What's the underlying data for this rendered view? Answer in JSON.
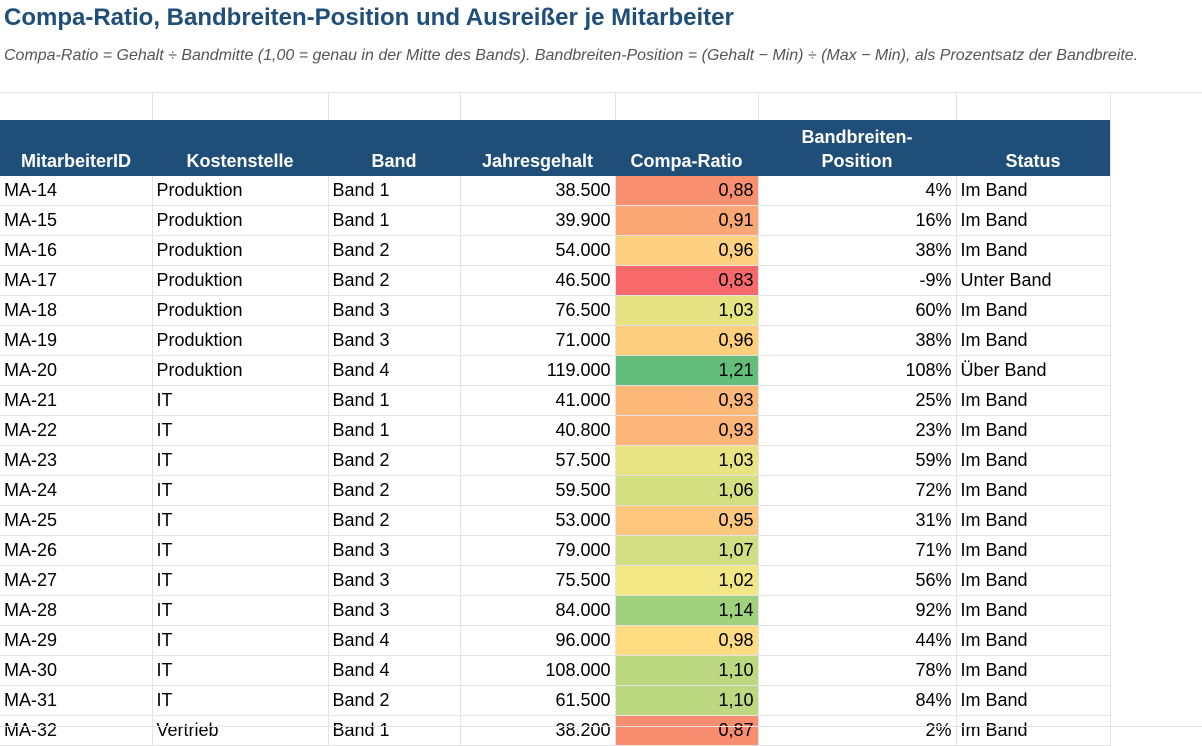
{
  "sheet": {
    "title": "Compa-Ratio, Bandbreiten-Position und Ausreißer je Mitarbeiter",
    "subtitle": "Compa-Ratio = Gehalt ÷ Bandmitte (1,00 = genau in der Mitte des Bands). Bandbreiten-Position = (Gehalt − Min) ÷ (Max − Min), als Prozentsatz der Bandbreite."
  },
  "headers": [
    "MitarbeiterID",
    "Kostenstelle",
    "Band",
    "Jahresgehalt",
    "Compa-Ratio",
    "Bandbreiten-Position",
    "Status"
  ],
  "rows": [
    {
      "id": "MA-14",
      "cc": "Produktion",
      "band": "Band 1",
      "salary": "38.500",
      "ratio": "0,88",
      "pos": "4%",
      "status": "Im Band",
      "color": "#f8906f"
    },
    {
      "id": "MA-15",
      "cc": "Produktion",
      "band": "Band 1",
      "salary": "39.900",
      "ratio": "0,91",
      "pos": "16%",
      "status": "Im Band",
      "color": "#fba775"
    },
    {
      "id": "MA-16",
      "cc": "Produktion",
      "band": "Band 2",
      "salary": "54.000",
      "ratio": "0,96",
      "pos": "38%",
      "status": "Im Band",
      "color": "#fdd17f"
    },
    {
      "id": "MA-17",
      "cc": "Produktion",
      "band": "Band 2",
      "salary": "46.500",
      "ratio": "0,83",
      "pos": "-9%",
      "status": "Unter Band",
      "color": "#f8696b"
    },
    {
      "id": "MA-18",
      "cc": "Produktion",
      "band": "Band 3",
      "salary": "76.500",
      "ratio": "1,03",
      "pos": "60%",
      "status": "Im Band",
      "color": "#e5e382"
    },
    {
      "id": "MA-19",
      "cc": "Produktion",
      "band": "Band 3",
      "salary": "71.000",
      "ratio": "0,96",
      "pos": "38%",
      "status": "Im Band",
      "color": "#fdce7e"
    },
    {
      "id": "MA-20",
      "cc": "Produktion",
      "band": "Band 4",
      "salary": "119.000",
      "ratio": "1,21",
      "pos": "108%",
      "status": "Über Band",
      "color": "#63be7b"
    },
    {
      "id": "MA-21",
      "cc": "IT",
      "band": "Band 1",
      "salary": "41.000",
      "ratio": "0,93",
      "pos": "25%",
      "status": "Im Band",
      "color": "#fcb879"
    },
    {
      "id": "MA-22",
      "cc": "IT",
      "band": "Band 1",
      "salary": "40.800",
      "ratio": "0,93",
      "pos": "23%",
      "status": "Im Band",
      "color": "#fcb579"
    },
    {
      "id": "MA-23",
      "cc": "IT",
      "band": "Band 2",
      "salary": "57.500",
      "ratio": "1,03",
      "pos": "59%",
      "status": "Im Band",
      "color": "#e8e482"
    },
    {
      "id": "MA-24",
      "cc": "IT",
      "band": "Band 2",
      "salary": "59.500",
      "ratio": "1,06",
      "pos": "72%",
      "status": "Im Band",
      "color": "#d4df81"
    },
    {
      "id": "MA-25",
      "cc": "IT",
      "band": "Band 2",
      "salary": "53.000",
      "ratio": "0,95",
      "pos": "31%",
      "status": "Im Band",
      "color": "#fdc77d"
    },
    {
      "id": "MA-26",
      "cc": "IT",
      "band": "Band 3",
      "salary": "79.000",
      "ratio": "1,07",
      "pos": "71%",
      "status": "Im Band",
      "color": "#d1de81"
    },
    {
      "id": "MA-27",
      "cc": "IT",
      "band": "Band 3",
      "salary": "75.500",
      "ratio": "1,02",
      "pos": "56%",
      "status": "Im Band",
      "color": "#f1e784"
    },
    {
      "id": "MA-28",
      "cc": "IT",
      "band": "Band 3",
      "salary": "84.000",
      "ratio": "1,14",
      "pos": "92%",
      "status": "Im Band",
      "color": "#a0d27e"
    },
    {
      "id": "MA-29",
      "cc": "IT",
      "band": "Band 4",
      "salary": "96.000",
      "ratio": "0,98",
      "pos": "44%",
      "status": "Im Band",
      "color": "#fedc81"
    },
    {
      "id": "MA-30",
      "cc": "IT",
      "band": "Band 4",
      "salary": "108.000",
      "ratio": "1,10",
      "pos": "78%",
      "status": "Im Band",
      "color": "#bcd880"
    },
    {
      "id": "MA-31",
      "cc": "IT",
      "band": "Band 2",
      "salary": "61.500",
      "ratio": "1,10",
      "pos": "84%",
      "status": "Im Band",
      "color": "#bcd880"
    },
    {
      "id": "MA-32",
      "cc": "Vertrieb",
      "band": "Band 1",
      "salary": "38.200",
      "ratio": "0,87",
      "pos": "2%",
      "status": "Im Band",
      "color": "#f88e6f"
    }
  ]
}
